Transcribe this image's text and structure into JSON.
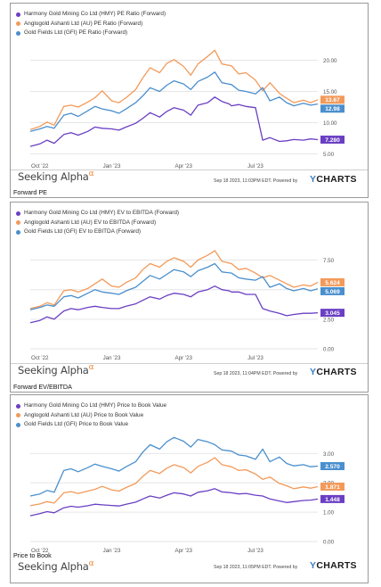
{
  "colors": {
    "hmy": "#6a3fc3",
    "au": "#f39a5a",
    "gfi": "#4a8fce",
    "grid": "#e6e6e6"
  },
  "chart_data": [
    {
      "type": "line",
      "caption": "Forward  PE",
      "x_ticks": [
        "Oct '22",
        "Jan '23",
        "Apr '23",
        "Jul '23"
      ],
      "x_tick_months": [
        0,
        3,
        6,
        9
      ],
      "xlim": [
        -0.4,
        11.6
      ],
      "ylim": [
        4.5,
        22.5
      ],
      "y_ticks": [
        "5.00",
        "10.00",
        "15.00",
        "20.00"
      ],
      "timestamp": "Sep 18 2023, 11:03PM EDT.  Powered by",
      "series": [
        {
          "name": "Harmony Gold Mining Co Ltd (HMY) PE Ratio (Forward)",
          "key": "hmy",
          "end_label": "7.280",
          "x": [
            -0.4,
            0.0,
            0.3,
            0.6,
            1.0,
            1.3,
            1.6,
            2.0,
            2.3,
            2.6,
            3.0,
            3.3,
            3.6,
            4.0,
            4.3,
            4.6,
            5.0,
            5.3,
            5.6,
            6.0,
            6.3,
            6.6,
            7.0,
            7.3,
            7.6,
            7.9,
            8.0,
            8.3,
            8.6,
            9.0,
            9.3,
            9.6,
            10.0,
            10.3,
            10.6,
            11.0,
            11.3,
            11.6
          ],
          "values": [
            6.2,
            6.6,
            7.2,
            6.7,
            8.1,
            8.4,
            8.0,
            8.6,
            9.3,
            9.1,
            9.0,
            8.8,
            9.3,
            9.9,
            10.7,
            11.6,
            10.9,
            11.8,
            12.4,
            12.0,
            11.2,
            12.8,
            13.2,
            14.1,
            13.4,
            13.0,
            12.7,
            12.9,
            12.6,
            12.4,
            7.2,
            7.6,
            7.0,
            7.1,
            7.3,
            7.2,
            7.4,
            7.28
          ]
        },
        {
          "name": "Anglogold Ashanti Ltd (AU) PE Ratio (Forward)",
          "key": "au",
          "end_label": "13.67",
          "x": [
            -0.4,
            0.0,
            0.3,
            0.6,
            1.0,
            1.3,
            1.6,
            2.0,
            2.3,
            2.6,
            3.0,
            3.3,
            3.6,
            4.0,
            4.3,
            4.6,
            5.0,
            5.3,
            5.6,
            6.0,
            6.3,
            6.6,
            7.0,
            7.3,
            7.6,
            8.0,
            8.3,
            8.6,
            9.0,
            9.3,
            9.6,
            10.0,
            10.3,
            10.6,
            11.0,
            11.3,
            11.6
          ],
          "values": [
            8.9,
            9.4,
            10.1,
            9.6,
            12.6,
            12.8,
            12.5,
            13.3,
            14.0,
            15.1,
            13.5,
            13.2,
            14.0,
            15.3,
            17.2,
            18.8,
            18.0,
            19.5,
            20.1,
            19.0,
            17.6,
            19.4,
            20.6,
            21.6,
            19.4,
            19.1,
            17.8,
            18.0,
            16.8,
            15.1,
            16.4,
            14.7,
            13.9,
            13.2,
            13.6,
            13.2,
            13.67
          ]
        },
        {
          "name": "Gold Fields Ltd (GFI) PE Ratio (Forward)",
          "key": "gfi",
          "end_label": "12.98",
          "x": [
            -0.4,
            0.0,
            0.3,
            0.6,
            1.0,
            1.3,
            1.6,
            2.0,
            2.3,
            2.6,
            3.0,
            3.3,
            3.6,
            4.0,
            4.3,
            4.6,
            5.0,
            5.3,
            5.6,
            6.0,
            6.3,
            6.6,
            7.0,
            7.3,
            7.6,
            8.0,
            8.3,
            8.6,
            9.0,
            9.3,
            9.6,
            10.0,
            10.3,
            10.6,
            11.0,
            11.3,
            11.6
          ],
          "values": [
            8.6,
            9.0,
            9.4,
            9.1,
            11.2,
            11.5,
            11.0,
            11.9,
            12.6,
            12.2,
            11.9,
            11.5,
            12.2,
            13.2,
            14.3,
            15.6,
            15.0,
            16.0,
            16.7,
            16.2,
            15.3,
            16.6,
            17.3,
            18.1,
            16.4,
            16.1,
            15.2,
            15.0,
            14.6,
            15.6,
            13.5,
            14.1,
            13.2,
            12.7,
            13.1,
            12.8,
            12.98
          ]
        }
      ]
    },
    {
      "type": "line",
      "caption": "Forward  EV/EBITDA",
      "x_ticks": [
        "Oct '22",
        "Jan '23",
        "Apr '23",
        "Jul '23"
      ],
      "x_tick_months": [
        0,
        3,
        6,
        9
      ],
      "xlim": [
        -0.4,
        11.6
      ],
      "ylim": [
        0,
        9.2
      ],
      "y_ticks": [
        "0.00",
        "2.50",
        "5.00",
        "7.50"
      ],
      "timestamp": "Sep 18 2023, 11:04PM EDT.  Powered by",
      "series": [
        {
          "name": "Harmony Gold Mining Co Ltd (HMY) EV to EBITDA (Forward)",
          "key": "hmy",
          "end_label": "3.045",
          "x": [
            -0.4,
            0.0,
            0.3,
            0.6,
            1.0,
            1.3,
            1.6,
            2.0,
            2.3,
            2.6,
            3.0,
            3.3,
            3.6,
            4.0,
            4.3,
            4.6,
            5.0,
            5.3,
            5.6,
            6.0,
            6.3,
            6.6,
            7.0,
            7.3,
            7.6,
            7.9,
            8.0,
            8.3,
            8.6,
            9.0,
            9.3,
            9.6,
            10.0,
            10.3,
            10.6,
            11.0,
            11.3,
            11.6
          ],
          "values": [
            2.2,
            2.4,
            2.7,
            2.5,
            3.2,
            3.4,
            3.3,
            3.5,
            3.6,
            3.5,
            3.4,
            3.4,
            3.6,
            3.8,
            4.1,
            4.4,
            4.2,
            4.5,
            4.7,
            4.6,
            4.4,
            4.8,
            5.0,
            5.3,
            5.0,
            4.9,
            4.8,
            4.8,
            4.6,
            4.6,
            3.4,
            3.2,
            3.0,
            2.8,
            2.9,
            3.0,
            3.0,
            3.045
          ]
        },
        {
          "name": "Anglogold Ashanti Ltd (AU) EV to EBITDA (Forward)",
          "key": "au",
          "end_label": "5.624",
          "x": [
            -0.4,
            0.0,
            0.3,
            0.6,
            1.0,
            1.3,
            1.6,
            2.0,
            2.3,
            2.6,
            3.0,
            3.3,
            3.6,
            4.0,
            4.3,
            4.6,
            5.0,
            5.3,
            5.6,
            6.0,
            6.3,
            6.6,
            7.0,
            7.3,
            7.6,
            8.0,
            8.3,
            8.6,
            9.0,
            9.3,
            9.6,
            10.0,
            10.3,
            10.6,
            11.0,
            11.3,
            11.6
          ],
          "values": [
            3.4,
            3.6,
            3.9,
            3.7,
            4.9,
            5.0,
            4.8,
            5.1,
            5.5,
            5.9,
            5.3,
            5.2,
            5.6,
            6.0,
            6.7,
            7.2,
            6.9,
            7.4,
            7.7,
            7.4,
            6.9,
            7.5,
            7.9,
            8.3,
            7.4,
            7.2,
            6.7,
            6.8,
            6.4,
            6.0,
            6.2,
            5.8,
            5.5,
            5.2,
            5.4,
            5.3,
            5.624
          ]
        },
        {
          "name": "Gold Fields Ltd (GFI) EV to EBITDA (Forward)",
          "key": "gfi",
          "end_label": "5.069",
          "x": [
            -0.4,
            0.0,
            0.3,
            0.6,
            1.0,
            1.3,
            1.6,
            2.0,
            2.3,
            2.6,
            3.0,
            3.3,
            3.6,
            4.0,
            4.3,
            4.6,
            5.0,
            5.3,
            5.6,
            6.0,
            6.3,
            6.6,
            7.0,
            7.3,
            7.6,
            8.0,
            8.3,
            8.6,
            9.0,
            9.3,
            9.6,
            10.0,
            10.3,
            10.6,
            11.0,
            11.3,
            11.6
          ],
          "values": [
            3.3,
            3.5,
            3.7,
            3.6,
            4.4,
            4.5,
            4.3,
            4.7,
            5.0,
            4.8,
            4.7,
            4.6,
            4.9,
            5.2,
            5.7,
            6.2,
            5.9,
            6.3,
            6.7,
            6.5,
            6.1,
            6.6,
            6.9,
            7.2,
            6.5,
            6.4,
            6.0,
            5.9,
            5.8,
            6.1,
            5.2,
            5.5,
            5.1,
            4.9,
            5.1,
            4.9,
            5.069
          ]
        }
      ]
    },
    {
      "type": "line",
      "caption": "Price to Book",
      "x_ticks": [
        "Oct '22",
        "Jan '23",
        "Apr '23",
        "Jul '23"
      ],
      "x_tick_months": [
        0,
        3,
        6,
        9
      ],
      "xlim": [
        -0.4,
        11.6
      ],
      "ylim": [
        0,
        3.65
      ],
      "y_ticks": [
        "0.00",
        "1.00",
        "2.00",
        "3.00"
      ],
      "timestamp": "Sep 18 2023, 11:05PM EDT.  Powered by",
      "series": [
        {
          "name": "Harmony Gold Mining Co Ltd (HMY) Price to Book Value",
          "key": "hmy",
          "end_label": "1.448",
          "x": [
            -0.4,
            0.0,
            0.3,
            0.6,
            1.0,
            1.3,
            1.6,
            2.0,
            2.3,
            2.6,
            3.0,
            3.3,
            3.6,
            4.0,
            4.3,
            4.6,
            5.0,
            5.3,
            5.6,
            6.0,
            6.3,
            6.6,
            7.0,
            7.3,
            7.6,
            8.0,
            8.3,
            8.6,
            9.0,
            9.3,
            9.6,
            10.0,
            10.3,
            10.6,
            11.0,
            11.3,
            11.6
          ],
          "values": [
            0.88,
            0.95,
            1.02,
            0.98,
            1.15,
            1.2,
            1.17,
            1.22,
            1.27,
            1.25,
            1.23,
            1.21,
            1.27,
            1.34,
            1.45,
            1.55,
            1.48,
            1.58,
            1.66,
            1.62,
            1.55,
            1.68,
            1.73,
            1.8,
            1.69,
            1.66,
            1.62,
            1.64,
            1.58,
            1.55,
            1.45,
            1.38,
            1.33,
            1.36,
            1.4,
            1.41,
            1.448
          ]
        },
        {
          "name": "Anglogold Ashanti Ltd (AU) Price to Book Value",
          "key": "au",
          "end_label": "1.871",
          "x": [
            -0.4,
            0.0,
            0.3,
            0.6,
            1.0,
            1.3,
            1.6,
            2.0,
            2.3,
            2.6,
            3.0,
            3.3,
            3.6,
            4.0,
            4.3,
            4.6,
            5.0,
            5.3,
            5.6,
            6.0,
            6.3,
            6.6,
            7.0,
            7.3,
            7.6,
            8.0,
            8.3,
            8.6,
            9.0,
            9.3,
            9.6,
            10.0,
            10.3,
            10.6,
            11.0,
            11.3,
            11.6
          ],
          "values": [
            1.22,
            1.28,
            1.36,
            1.31,
            1.66,
            1.7,
            1.64,
            1.72,
            1.78,
            1.88,
            1.76,
            1.72,
            1.84,
            1.98,
            2.22,
            2.42,
            2.32,
            2.5,
            2.62,
            2.52,
            2.34,
            2.56,
            2.7,
            2.86,
            2.62,
            2.55,
            2.42,
            2.45,
            2.3,
            2.12,
            2.2,
            1.98,
            1.9,
            1.8,
            1.86,
            1.82,
            1.871
          ]
        },
        {
          "name": "Gold Fields Ltd (GFI) Price to Book Value",
          "key": "gfi",
          "end_label": "2.570",
          "x": [
            -0.4,
            0.0,
            0.3,
            0.6,
            1.0,
            1.3,
            1.6,
            2.0,
            2.3,
            2.6,
            3.0,
            3.3,
            3.6,
            4.0,
            4.3,
            4.6,
            5.0,
            5.3,
            5.6,
            6.0,
            6.3,
            6.6,
            7.0,
            7.3,
            7.6,
            8.0,
            8.3,
            8.6,
            9.0,
            9.3,
            9.6,
            10.0,
            10.3,
            10.6,
            11.0,
            11.3,
            11.6
          ],
          "values": [
            1.55,
            1.62,
            1.74,
            1.68,
            2.42,
            2.48,
            2.38,
            2.52,
            2.64,
            2.56,
            2.48,
            2.4,
            2.55,
            2.72,
            3.05,
            3.3,
            3.15,
            3.4,
            3.55,
            3.42,
            3.22,
            3.48,
            3.4,
            3.3,
            3.12,
            3.08,
            2.95,
            2.92,
            2.8,
            3.15,
            2.72,
            2.88,
            2.66,
            2.58,
            2.62,
            2.55,
            2.57
          ]
        }
      ]
    }
  ],
  "branding": {
    "seeking": "Seeking Alpha",
    "alpha": "α",
    "ycharts_y": "Y",
    "ycharts_rest": "CHARTS"
  }
}
